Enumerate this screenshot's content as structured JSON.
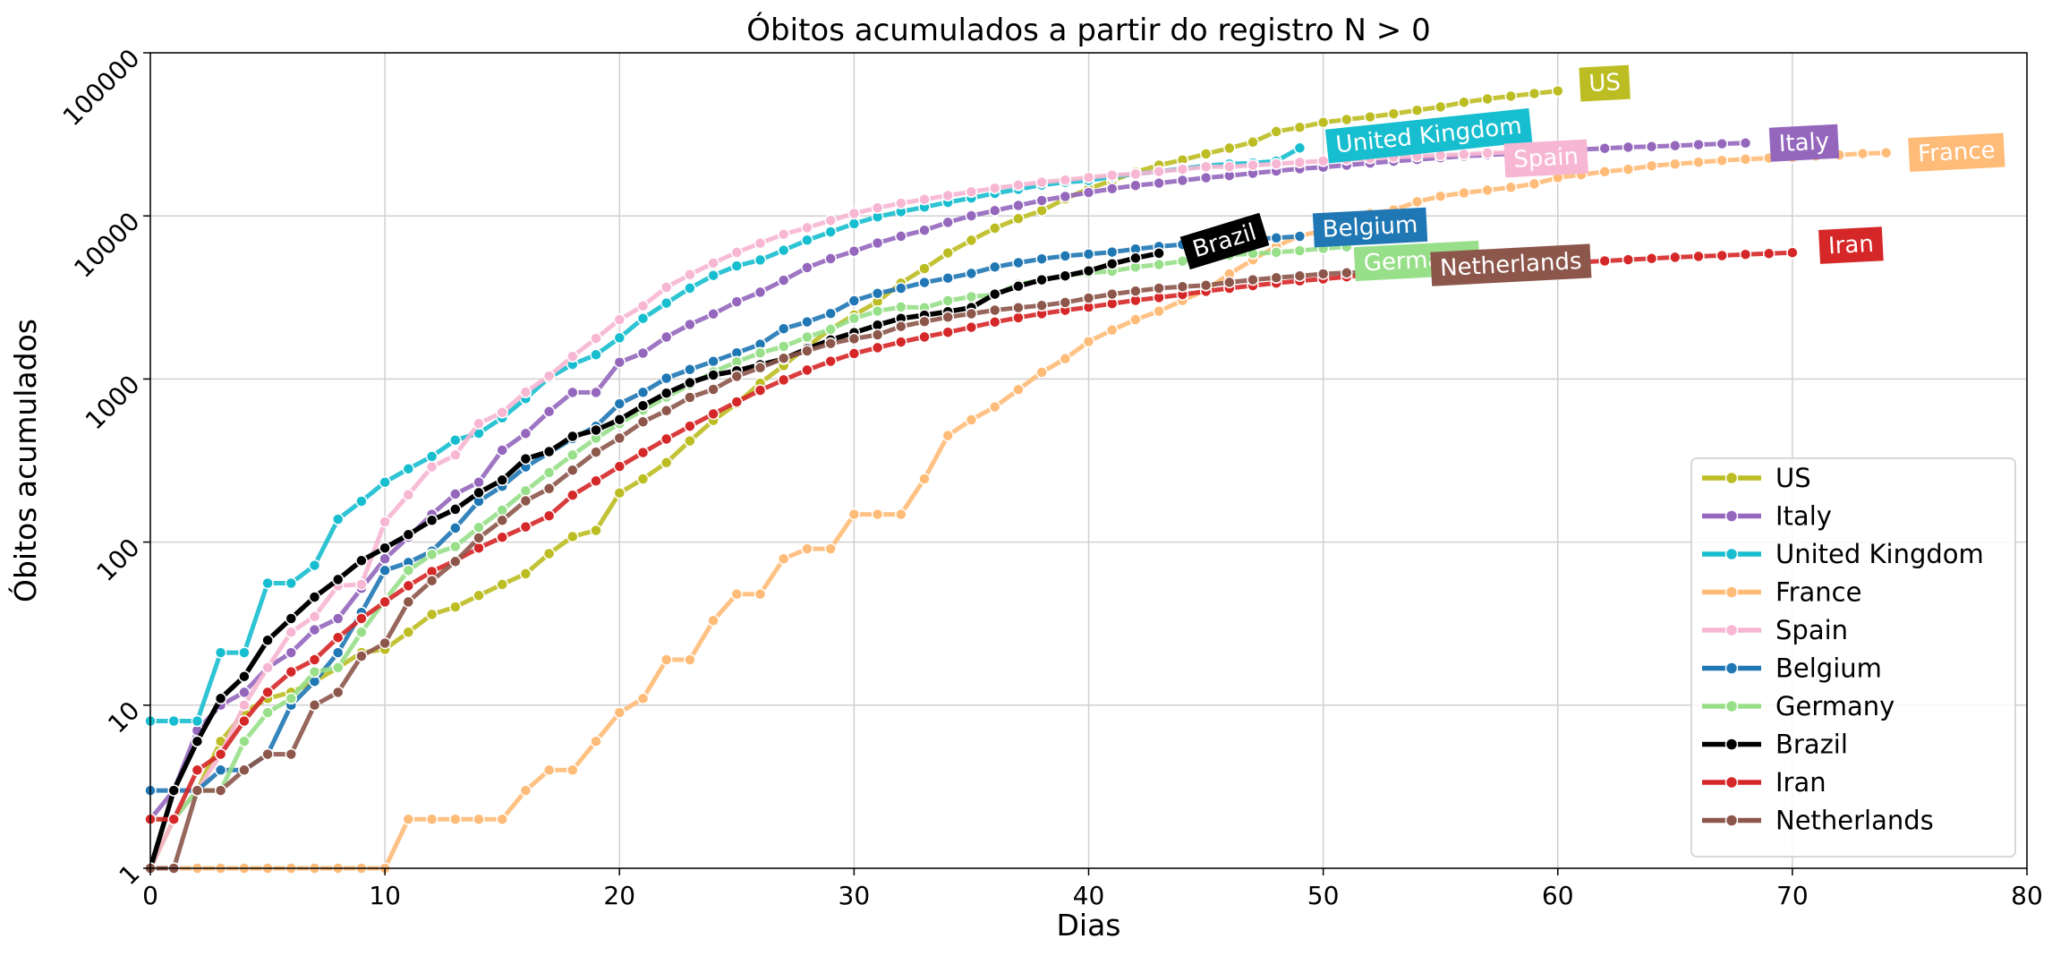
{
  "chart_data": {
    "type": "line",
    "title": "Óbitos acumulados a partir do registro N > 0",
    "xlabel": "Dias",
    "ylabel": "Óbitos acumulados",
    "xlim": [
      0,
      80
    ],
    "ylim": [
      1,
      100000
    ],
    "yscale": "log",
    "grid": true,
    "legend_position": "lower-right",
    "x_ticks": [
      "0",
      "10",
      "20",
      "30",
      "40",
      "50",
      "60",
      "70",
      "80"
    ],
    "y_ticks": [
      "1",
      "10",
      "100",
      "1000",
      "10000",
      "100000"
    ],
    "series": [
      {
        "name": "US",
        "color": "#bcbd22",
        "end_label": "US",
        "label_at": [
          62,
          65000
        ],
        "label_rotation": -3,
        "values": [
          1,
          2,
          3,
          6,
          9,
          11,
          12,
          14,
          17,
          21,
          22,
          28,
          36,
          40,
          47,
          55,
          64,
          85,
          108,
          118,
          200,
          244,
          307,
          417,
          557,
          706,
          942,
          1209,
          1581,
          2026,
          2467,
          2978,
          3873,
          4757,
          5926,
          7087,
          8407,
          9619,
          10783,
          12722,
          14695,
          16478,
          18586,
          20463,
          22020,
          24015,
          26047,
          28326,
          32916,
          34905,
          37448,
          39015,
          40478,
          42303,
          44444,
          46622,
          49759,
          52185,
          54256,
          56245,
          58355
        ]
      },
      {
        "name": "Italy",
        "color": "#9467bd",
        "end_label": "Italy",
        "label_at": [
          70.5,
          28000
        ],
        "label_rotation": -3,
        "values": [
          2,
          3,
          7,
          10,
          12,
          17,
          21,
          29,
          34,
          52,
          79,
          107,
          148,
          197,
          233,
          366,
          463,
          631,
          827,
          827,
          1266,
          1441,
          1809,
          2158,
          2503,
          2978,
          3405,
          4032,
          4825,
          5476,
          6077,
          6820,
          7503,
          8165,
          9134,
          10023,
          10779,
          11591,
          12428,
          13155,
          13915,
          14681,
          15362,
          15887,
          16523,
          17127,
          17669,
          18279,
          18849,
          19468,
          19899,
          20465,
          21067,
          21645,
          22170,
          22745,
          23227,
          23660,
          24114,
          24648,
          25085,
          25549,
          25969,
          26384,
          26644,
          26977,
          27359,
          27682,
          27967
        ]
      },
      {
        "name": "United Kingdom",
        "color": "#17becf",
        "end_label": "United Kingdom",
        "label_at": [
          54.5,
          31000
        ],
        "label_rotation": -6,
        "values": [
          8,
          8,
          8,
          21,
          21,
          56,
          56,
          72,
          138,
          178,
          233,
          281,
          335,
          422,
          465,
          578,
          759,
          1019,
          1228,
          1408,
          1789,
          2352,
          2921,
          3605,
          4313,
          4934,
          5373,
          6159,
          7097,
          7978,
          8958,
          9875,
          10612,
          11329,
          12107,
          12868,
          13729,
          14576,
          15464,
          16060,
          16509,
          17337,
          18100,
          18738,
          19506,
          20319,
          20794,
          21092,
          21678,
          26097
        ]
      },
      {
        "name": "France",
        "color": "#ffbb78",
        "end_label": "France",
        "label_at": [
          77,
          24500
        ],
        "label_rotation": -3,
        "values": [
          1,
          1,
          1,
          1,
          1,
          1,
          1,
          1,
          1,
          1,
          1,
          2,
          2,
          2,
          2,
          2,
          3,
          4,
          4,
          6,
          9,
          11,
          19,
          19,
          33,
          48,
          48,
          79,
          91,
          91,
          148,
          148,
          148,
          244,
          450,
          562,
          674,
          860,
          1100,
          1331,
          1696,
          1995,
          2314,
          2606,
          3024,
          3523,
          4403,
          5387,
          6507,
          7560,
          8078,
          8911,
          10328,
          10869,
          12210,
          13197,
          13832,
          14393,
          14967,
          15729,
          17148,
          17901,
          18681,
          19323,
          20265,
          20796,
          21340,
          21856,
          22245,
          22614,
          22856,
          23293,
          23660,
          24087,
          24376
        ]
      },
      {
        "name": "Spain",
        "color": "#f7b6d2",
        "end_label": "Spain",
        "label_at": [
          59.5,
          22500
        ],
        "label_rotation": -3,
        "values": [
          1,
          2,
          3,
          5,
          10,
          17,
          28,
          35,
          54,
          55,
          133,
          195,
          289,
          342,
          533,
          623,
          830,
          1043,
          1375,
          1772,
          2311,
          2808,
          3647,
          4365,
          5138,
          5982,
          6803,
          7716,
          8464,
          9387,
          10348,
          11198,
          11947,
          12641,
          13341,
          14045,
          14792,
          15447,
          16081,
          16606,
          17209,
          17756,
          18056,
          18708,
          19315,
          20002,
          20043,
          20453,
          20852,
          21282,
          21717,
          22157,
          22524,
          22902,
          23190,
          23521,
          23822,
          24275,
          24543,
          24824
        ]
      },
      {
        "name": "Belgium",
        "color": "#1f77b4",
        "end_label": "Belgium",
        "label_at": [
          52,
          8500
        ],
        "label_rotation": -3,
        "values": [
          3,
          3,
          3,
          4,
          4,
          5,
          10,
          14,
          21,
          37,
          67,
          75,
          88,
          122,
          178,
          220,
          289,
          353,
          431,
          513,
          705,
          828,
          1011,
          1143,
          1283,
          1447,
          1632,
          2035,
          2240,
          2523,
          3019,
          3346,
          3600,
          3903,
          4157,
          4440,
          4857,
          5163,
          5453,
          5683,
          5828,
          5998,
          6262,
          6490,
          6679,
          6917,
          7094,
          7207,
          7331,
          7501
        ]
      },
      {
        "name": "Germany",
        "color": "#98df8a",
        "end_label": "Germany",
        "label_at": [
          54,
          5300
        ],
        "label_rotation": -3,
        "values": [
          2,
          2,
          3,
          3,
          6,
          9,
          11,
          16,
          17,
          28,
          44,
          67,
          84,
          94,
          123,
          157,
          206,
          267,
          342,
          433,
          533,
          645,
          775,
          920,
          1107,
          1275,
          1444,
          1584,
          1810,
          2016,
          2349,
          2607,
          2767,
          2736,
          3022,
          3194,
          3294,
          3804,
          4052,
          4352,
          4459,
          4586,
          4862,
          5033,
          5279,
          5575,
          5760,
          5877,
          5976,
          6126,
          6314,
          6467
        ]
      },
      {
        "name": "Brazil",
        "color": "#000000",
        "end_label": "Brazil",
        "label_at": [
          45.8,
          7000
        ],
        "label_rotation": -17,
        "values": [
          1,
          3,
          6,
          11,
          15,
          25,
          34,
          46,
          59,
          77,
          92,
          111,
          136,
          159,
          201,
          240,
          324,
          359,
          445,
          486,
          564,
          686,
          819,
          950,
          1057,
          1124,
          1223,
          1328,
          1532,
          1736,
          1924,
          2141,
          2354,
          2462,
          2587,
          2741,
          3313,
          3704,
          4057,
          4286,
          4603,
          5083,
          5513,
          5901
        ]
      },
      {
        "name": "Iran",
        "color": "#d62728",
        "end_label": "Iran",
        "label_at": [
          72.5,
          6600
        ],
        "label_rotation": -3,
        "values": [
          2,
          2,
          4,
          5,
          8,
          12,
          16,
          19,
          26,
          34,
          43,
          54,
          66,
          77,
          92,
          107,
          124,
          145,
          194,
          237,
          291,
          354,
          429,
          514,
          611,
          724,
          853,
          988,
          1135,
          1284,
          1433,
          1556,
          1685,
          1812,
          1934,
          2077,
          2234,
          2378,
          2517,
          2640,
          2757,
          2898,
          3036,
          3160,
          3294,
          3452,
          3603,
          3739,
          3872,
          3993,
          4110,
          4232,
          4357,
          4474,
          4585,
          4683,
          4777,
          4869,
          4958,
          5031,
          5118,
          5209,
          5297,
          5391,
          5481,
          5574,
          5650,
          5710,
          5806,
          5877,
          5957
        ]
      },
      {
        "name": "Netherlands",
        "color": "#8c564b",
        "end_label": "Netherlands",
        "label_at": [
          58,
          5000
        ],
        "label_rotation": -3,
        "values": [
          1,
          1,
          3,
          3,
          4,
          5,
          5,
          10,
          12,
          20,
          24,
          43,
          58,
          76,
          106,
          136,
          179,
          213,
          276,
          356,
          434,
          546,
          639,
          771,
          864,
          1039,
          1173,
          1339,
          1487,
          1651,
          1766,
          1867,
          2101,
          2248,
          2396,
          2511,
          2643,
          2737,
          2823,
          2945,
          3134,
          3315,
          3459,
          3601,
          3684,
          3751,
          3916,
          4054,
          4177,
          4289,
          4409,
          4475,
          4518,
          4566,
          4711,
          4795,
          4893,
          4987,
          5056,
          5082
        ]
      }
    ]
  }
}
